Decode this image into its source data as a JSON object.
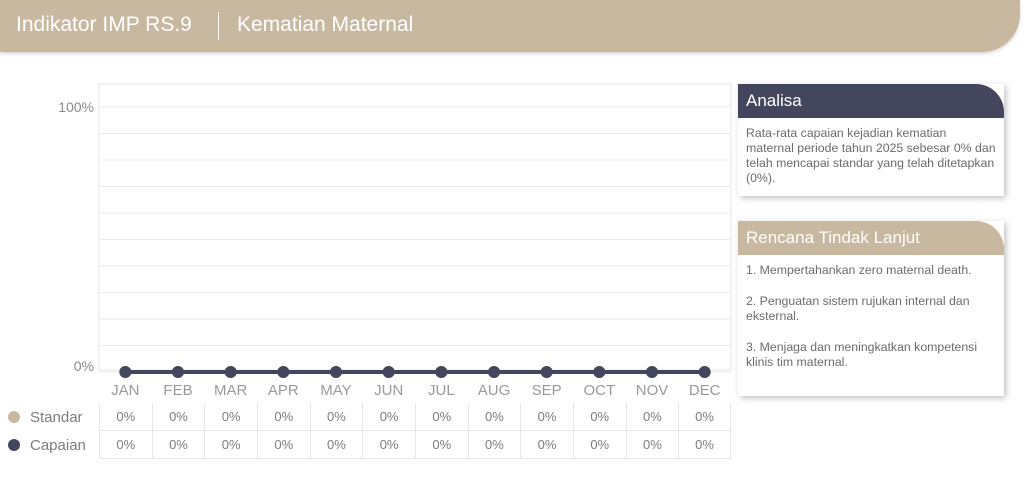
{
  "header": {
    "title": "Indikator IMP RS.9",
    "subtitle": "Kematian Maternal"
  },
  "colors": {
    "header": "#c8b8a0",
    "standar": "#c8b8a0",
    "capaian": "#44465e"
  },
  "chart_data": {
    "type": "line",
    "categories": [
      "JAN",
      "FEB",
      "MAR",
      "APR",
      "MAY",
      "JUN",
      "JUL",
      "AUG",
      "SEP",
      "OCT",
      "NOV",
      "DEC"
    ],
    "ylim": [
      0,
      100
    ],
    "y_tick_labels": [
      "100%",
      "0%"
    ],
    "grid": true,
    "series": [
      {
        "name": "Standar",
        "values": [
          0,
          0,
          0,
          0,
          0,
          0,
          0,
          0,
          0,
          0,
          0,
          0
        ],
        "labels": [
          "0%",
          "0%",
          "0%",
          "0%",
          "0%",
          "0%",
          "0%",
          "0%",
          "0%",
          "0%",
          "0%",
          "0%"
        ]
      },
      {
        "name": "Capaian",
        "values": [
          0,
          0,
          0,
          0,
          0,
          0,
          0,
          0,
          0,
          0,
          0,
          0
        ],
        "labels": [
          "0%",
          "0%",
          "0%",
          "0%",
          "0%",
          "0%",
          "0%",
          "0%",
          "0%",
          "0%",
          "0%",
          "0%"
        ]
      }
    ]
  },
  "analisa": {
    "title": "Analisa",
    "text": "Rata-rata capaian kejadian kematian maternal periode tahun 2025 sebesar 0% dan telah mencapai standar yang telah ditetapkan (0%)."
  },
  "rencana": {
    "title": "Rencana Tindak Lanjut",
    "items": [
      "1. Mempertahankan zero maternal death.",
      "2. Penguatan sistem rujukan internal dan eksternal.",
      "3. Menjaga dan meningkatkan kompetensi klinis tim maternal."
    ]
  }
}
